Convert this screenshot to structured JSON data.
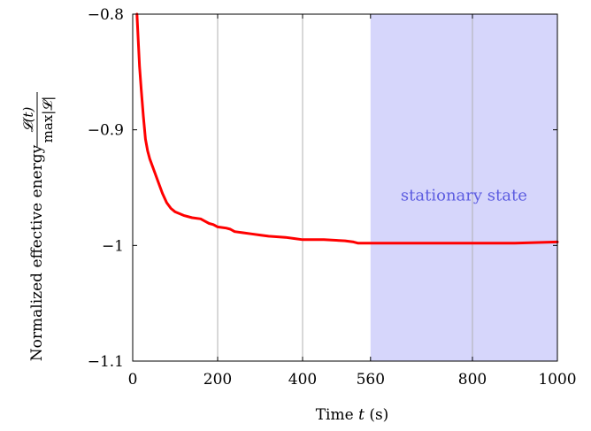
{
  "chart_data": {
    "type": "line",
    "xlabel_prefix": "Time",
    "xlabel_var": "t",
    "xlabel_unit": "(s)",
    "ylabel_text": "Normalized effective energy",
    "ylabel_numerator": "𝓛(t)",
    "ylabel_denominator": "max|𝓛|",
    "xlim": [
      0,
      1000
    ],
    "ylim": [
      -1.1,
      -0.8
    ],
    "xticks": [
      0,
      200,
      400,
      560,
      800,
      1000
    ],
    "xtick_labels": [
      "0",
      "200",
      "400",
      "560",
      "800",
      "1000"
    ],
    "yticks": [
      -1.1,
      -1.0,
      -0.9,
      -0.8
    ],
    "ytick_labels": [
      "−1.1",
      "−1",
      "−0.9",
      "−0.8"
    ],
    "vgrid": [
      200,
      400,
      800
    ],
    "shaded_region": {
      "x0": 560,
      "x1": 1000,
      "label": "stationary state",
      "label_y": -0.961,
      "color": "#d6d6fb"
    },
    "series": [
      {
        "color": "#ff0000",
        "x": [
          10,
          13,
          16,
          20,
          25,
          30,
          35,
          40,
          50,
          60,
          70,
          80,
          90,
          100,
          120,
          140,
          160,
          170,
          180,
          190,
          200,
          220,
          230,
          240,
          260,
          280,
          300,
          320,
          360,
          380,
          400,
          450,
          500,
          520,
          530,
          560,
          700,
          800,
          900,
          1000
        ],
        "y": [
          -0.8,
          -0.822,
          -0.845,
          -0.865,
          -0.888,
          -0.908,
          -0.918,
          -0.925,
          -0.935,
          -0.945,
          -0.955,
          -0.963,
          -0.968,
          -0.971,
          -0.974,
          -0.976,
          -0.977,
          -0.979,
          -0.981,
          -0.982,
          -0.984,
          -0.985,
          -0.986,
          -0.988,
          -0.989,
          -0.99,
          -0.991,
          -0.992,
          -0.993,
          -0.994,
          -0.995,
          -0.995,
          -0.996,
          -0.997,
          -0.998,
          -0.998,
          -0.998,
          -0.998,
          -0.998,
          -0.997
        ]
      }
    ]
  }
}
